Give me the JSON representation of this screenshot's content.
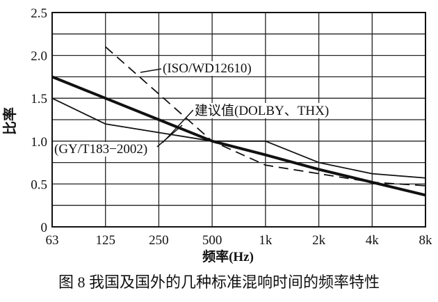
{
  "chart_data": {
    "type": "line",
    "x": [
      "63",
      "125",
      "250",
      "500",
      "1k",
      "2k",
      "4k",
      "8k"
    ],
    "xlabel": "频率(Hz)",
    "ylabel": "比率",
    "ylim": [
      0,
      2.5
    ],
    "yticks": [
      "0",
      "0.5",
      "1.0",
      "1.5",
      "2.0",
      "2.5"
    ],
    "grid": true,
    "caption": "图 8   我国及国外的几种标准混响时间的频率特性",
    "series": [
      {
        "name": "建议值(DOLBY、THX)",
        "style": "bold",
        "x": [
          "63",
          "125",
          "250",
          "500",
          "1k",
          "2k",
          "4k",
          "8k"
        ],
        "values": [
          1.75,
          1.5,
          1.25,
          1.0,
          0.84,
          0.67,
          0.52,
          0.37
        ]
      },
      {
        "name": "(GY/T183−2002)",
        "style": "thin",
        "x": [
          "63",
          "125",
          "250",
          "500",
          "1k",
          "2k",
          "4k",
          "8k"
        ],
        "values": [
          1.5,
          1.2,
          1.1,
          1.0,
          1.0,
          0.75,
          0.62,
          0.57
        ]
      },
      {
        "name": "(ISO/WD12610)",
        "style": "dashed",
        "x": [
          "125",
          "250",
          "500",
          "1k",
          "2k",
          "4k",
          "8k"
        ],
        "values": [
          2.1,
          1.55,
          1.0,
          0.72,
          0.62,
          0.52,
          0.48
        ]
      }
    ]
  }
}
